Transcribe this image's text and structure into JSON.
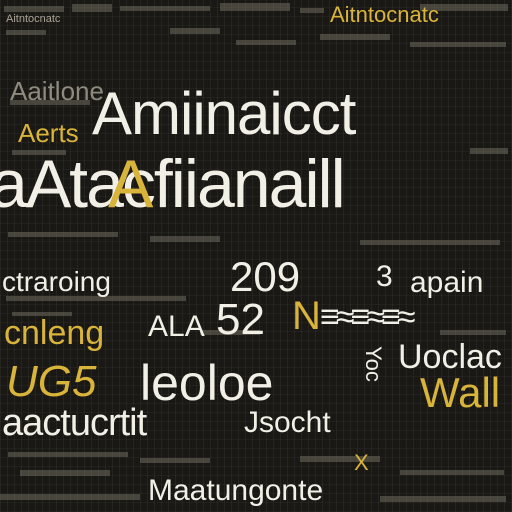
{
  "texts": {
    "t01": "Amiinaicct",
    "t02": "aAtacfiianaill",
    "t03": "Aaitlone",
    "t04": "Aerts",
    "t05": "ctraroing",
    "t06": "209",
    "t07": "apain",
    "t08": "ALA",
    "t09": "52",
    "t10": "cnleng",
    "t11": "Uoclac",
    "t12": "UG5",
    "t13": "leoloe",
    "t14": "Wall",
    "t15": "aactucrtit",
    "t16": "Jsocht",
    "t17": "Maatungonte",
    "t18": "X",
    "t19": "Aitntocnatc",
    "t20": "3",
    "t21": "N",
    "t22": "Yoc"
  },
  "colors": {
    "background": "#1a1814",
    "white_text": "#f2efe6",
    "yellow_text": "#d9b43a",
    "grey_text": "#8e8a7e"
  }
}
